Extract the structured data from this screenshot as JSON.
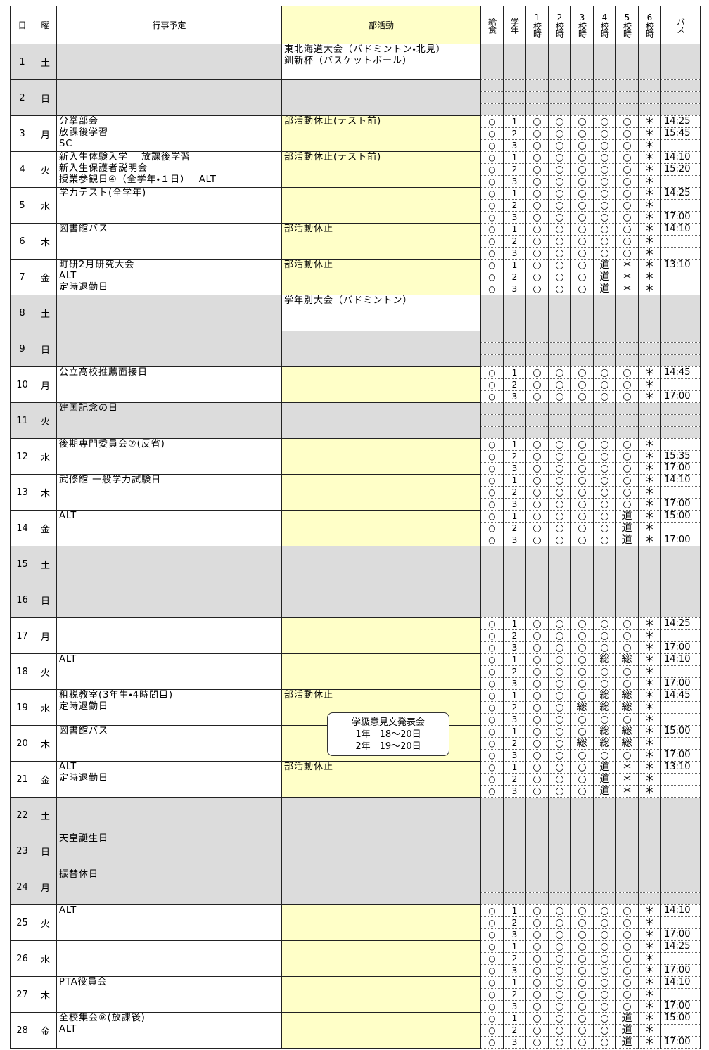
{
  "header": [
    "日",
    "曜",
    "行事予定",
    "部活動",
    "給食",
    "学年",
    "1校時",
    "2校時",
    "3校時",
    "4校時",
    "5校時",
    "6校時",
    "バス"
  ],
  "note": [
    "学級意見文発表会",
    "1年　18～20日",
    "2年　19～20日"
  ],
  "days": [
    {
      "date": 1,
      "dow": "土",
      "holiday": true,
      "events": [],
      "club": [
        "東北海道大会（バドミントン・北見）",
        "釧新杯（バスケットボール）"
      ]
    },
    {
      "date": 2,
      "dow": "日",
      "holiday": true,
      "events": [],
      "club": []
    },
    {
      "date": 3,
      "dow": "月",
      "events": [
        "分掌部会",
        "放課後学習",
        "SC"
      ],
      "club": [
        "部活動休止(テスト前)"
      ],
      "rows": [
        {
          "lunch": "○",
          "grade": 1,
          "periods": [
            "○",
            "○",
            "○",
            "○",
            "○",
            "＊"
          ]
        },
        {
          "lunch": "○",
          "grade": 2,
          "periods": [
            "○",
            "○",
            "○",
            "○",
            "○",
            "＊"
          ]
        },
        {
          "lunch": "○",
          "grade": 3,
          "periods": [
            "○",
            "○",
            "○",
            "○",
            "○",
            "＊"
          ]
        }
      ],
      "bus": [
        "14:25",
        "15:45",
        null
      ]
    },
    {
      "date": 4,
      "dow": "火",
      "events": [
        "新入生体験入学　 放課後学習",
        "新入生保護者説明会",
        "授業参観日④（全学年・１日）　 ALT"
      ],
      "club": [
        "部活動休止(テスト前)"
      ],
      "rows": [
        {
          "lunch": "○",
          "grade": 1,
          "periods": [
            "○",
            "○",
            "○",
            "○",
            "○",
            "＊"
          ]
        },
        {
          "lunch": "○",
          "grade": 2,
          "periods": [
            "○",
            "○",
            "○",
            "○",
            "○",
            "＊"
          ]
        },
        {
          "lunch": "○",
          "grade": 3,
          "periods": [
            "○",
            "○",
            "○",
            "○",
            "○",
            "＊"
          ]
        }
      ],
      "bus": [
        "14:10",
        "15:20",
        null
      ]
    },
    {
      "date": 5,
      "dow": "水",
      "events": [
        "学力テスト(全学年)"
      ],
      "club": [],
      "rows": [
        {
          "lunch": "○",
          "grade": 1,
          "periods": [
            "○",
            "○",
            "○",
            "○",
            "○",
            "＊"
          ]
        },
        {
          "lunch": "○",
          "grade": 2,
          "periods": [
            "○",
            "○",
            "○",
            "○",
            "○",
            "＊"
          ]
        },
        {
          "lunch": "○",
          "grade": 3,
          "periods": [
            "○",
            "○",
            "○",
            "○",
            "○",
            "＊"
          ]
        }
      ],
      "bus": [
        "14:25",
        null,
        "17:00"
      ]
    },
    {
      "date": 6,
      "dow": "木",
      "events": [
        "図書館バス"
      ],
      "club": [
        "部活動休止"
      ],
      "rows": [
        {
          "lunch": "○",
          "grade": 1,
          "periods": [
            "○",
            "○",
            "○",
            "○",
            "○",
            "＊"
          ]
        },
        {
          "lunch": "○",
          "grade": 2,
          "periods": [
            "○",
            "○",
            "○",
            "○",
            "○",
            "＊"
          ]
        },
        {
          "lunch": "○",
          "grade": 3,
          "periods": [
            "○",
            "○",
            "○",
            "○",
            "○",
            "＊"
          ]
        }
      ],
      "bus": [
        "14:10",
        null,
        null
      ]
    },
    {
      "date": 7,
      "dow": "金",
      "events": [
        "町研2月研究大会",
        "ALT",
        "定時退勤日"
      ],
      "club": [
        "部活動休止"
      ],
      "rows": [
        {
          "lunch": "○",
          "grade": 1,
          "periods": [
            "○",
            "○",
            "○",
            "道",
            "＊",
            "＊"
          ]
        },
        {
          "lunch": "○",
          "grade": 2,
          "periods": [
            "○",
            "○",
            "○",
            "道",
            "＊",
            "＊"
          ]
        },
        {
          "lunch": "○",
          "grade": 3,
          "periods": [
            "○",
            "○",
            "○",
            "道",
            "＊",
            "＊"
          ]
        }
      ],
      "bus": [
        "13:10",
        null,
        null
      ]
    },
    {
      "date": 8,
      "dow": "土",
      "holiday": true,
      "events": [],
      "club": [
        "学年別大会（バドミントン）"
      ]
    },
    {
      "date": 9,
      "dow": "日",
      "holiday": true,
      "events": [],
      "club": []
    },
    {
      "date": 10,
      "dow": "月",
      "events": [
        "公立高校推薦面接日"
      ],
      "club": [],
      "rows": [
        {
          "lunch": "○",
          "grade": 1,
          "periods": [
            "○",
            "○",
            "○",
            "○",
            "○",
            "＊"
          ]
        },
        {
          "lunch": "○",
          "grade": 2,
          "periods": [
            "○",
            "○",
            "○",
            "○",
            "○",
            "＊"
          ]
        },
        {
          "lunch": "○",
          "grade": 3,
          "periods": [
            "○",
            "○",
            "○",
            "○",
            "○",
            "＊"
          ]
        }
      ],
      "bus": [
        "14:45",
        null,
        "17:00"
      ]
    },
    {
      "date": 11,
      "dow": "火",
      "holiday": true,
      "events": [
        "建国記念の日"
      ],
      "club": []
    },
    {
      "date": 12,
      "dow": "水",
      "events": [
        "後期専門委員会⑦(反省)"
      ],
      "club": [],
      "rows": [
        {
          "lunch": "○",
          "grade": 1,
          "periods": [
            "○",
            "○",
            "○",
            "○",
            "○",
            "＊"
          ]
        },
        {
          "lunch": "○",
          "grade": 2,
          "periods": [
            "○",
            "○",
            "○",
            "○",
            "○",
            "＊"
          ]
        },
        {
          "lunch": "○",
          "grade": 3,
          "periods": [
            "○",
            "○",
            "○",
            "○",
            "○",
            "＊"
          ]
        }
      ],
      "bus": [
        null,
        "15:35",
        "17:00"
      ]
    },
    {
      "date": 13,
      "dow": "木",
      "events": [
        "武修館 一般学力試験日"
      ],
      "club": [],
      "rows": [
        {
          "lunch": "○",
          "grade": 1,
          "periods": [
            "○",
            "○",
            "○",
            "○",
            "○",
            "＊"
          ]
        },
        {
          "lunch": "○",
          "grade": 2,
          "periods": [
            "○",
            "○",
            "○",
            "○",
            "○",
            "＊"
          ]
        },
        {
          "lunch": "○",
          "grade": 3,
          "periods": [
            "○",
            "○",
            "○",
            "○",
            "○",
            "＊"
          ]
        }
      ],
      "bus": [
        "14:10",
        null,
        "17:00"
      ]
    },
    {
      "date": 14,
      "dow": "金",
      "events": [
        "ALT"
      ],
      "club": [],
      "rows": [
        {
          "lunch": "○",
          "grade": 1,
          "periods": [
            "○",
            "○",
            "○",
            "○",
            "道",
            "＊"
          ]
        },
        {
          "lunch": "○",
          "grade": 2,
          "periods": [
            "○",
            "○",
            "○",
            "○",
            "道",
            "＊"
          ]
        },
        {
          "lunch": "○",
          "grade": 3,
          "periods": [
            "○",
            "○",
            "○",
            "○",
            "道",
            "＊"
          ]
        }
      ],
      "bus": [
        "15:00",
        null,
        "17:00"
      ]
    },
    {
      "date": 15,
      "dow": "土",
      "holiday": true,
      "events": [],
      "club": []
    },
    {
      "date": 16,
      "dow": "日",
      "holiday": true,
      "events": [],
      "club": []
    },
    {
      "date": 17,
      "dow": "月",
      "events": [],
      "club": [],
      "rows": [
        {
          "lunch": "○",
          "grade": 1,
          "periods": [
            "○",
            "○",
            "○",
            "○",
            "○",
            "＊"
          ]
        },
        {
          "lunch": "○",
          "grade": 2,
          "periods": [
            "○",
            "○",
            "○",
            "○",
            "○",
            "＊"
          ]
        },
        {
          "lunch": "○",
          "grade": 3,
          "periods": [
            "○",
            "○",
            "○",
            "○",
            "○",
            "＊"
          ]
        }
      ],
      "bus": [
        "14:25",
        null,
        "17:00"
      ]
    },
    {
      "date": 18,
      "dow": "火",
      "events": [
        "ALT"
      ],
      "club": [],
      "rows": [
        {
          "lunch": "○",
          "grade": 1,
          "periods": [
            "○",
            "○",
            "○",
            "総",
            "総",
            "＊"
          ]
        },
        {
          "lunch": "○",
          "grade": 2,
          "periods": [
            "○",
            "○",
            "○",
            "○",
            "○",
            "＊"
          ]
        },
        {
          "lunch": "○",
          "grade": 3,
          "periods": [
            "○",
            "○",
            "○",
            "○",
            "○",
            "＊"
          ]
        }
      ],
      "bus": [
        "14:10",
        null,
        "17:00"
      ]
    },
    {
      "date": 19,
      "dow": "水",
      "events": [
        "租税教室(3年生・4時間目)",
        "定時退勤日"
      ],
      "club": [
        "部活動休止"
      ],
      "rows": [
        {
          "lunch": "○",
          "grade": 1,
          "periods": [
            "○",
            "○",
            "○",
            "総",
            "総",
            "＊"
          ]
        },
        {
          "lunch": "○",
          "grade": 2,
          "periods": [
            "○",
            "○",
            "総",
            "総",
            "総",
            "＊"
          ]
        },
        {
          "lunch": "○",
          "grade": 3,
          "periods": [
            "○",
            "○",
            "○",
            "○",
            "○",
            "＊"
          ]
        }
      ],
      "bus": [
        "14:45",
        null,
        null
      ]
    },
    {
      "date": 20,
      "dow": "木",
      "events": [
        "図書館バス"
      ],
      "club": [],
      "rows": [
        {
          "lunch": "○",
          "grade": 1,
          "periods": [
            "○",
            "○",
            "○",
            "総",
            "総",
            "＊"
          ]
        },
        {
          "lunch": "○",
          "grade": 2,
          "periods": [
            "○",
            "○",
            "総",
            "総",
            "総",
            "＊"
          ]
        },
        {
          "lunch": "○",
          "grade": 3,
          "periods": [
            "○",
            "○",
            "○",
            "○",
            "○",
            "＊"
          ]
        }
      ],
      "bus": [
        "15:00",
        null,
        "17:00"
      ]
    },
    {
      "date": 21,
      "dow": "金",
      "events": [
        "ALT",
        "定時退勤日"
      ],
      "club": [
        "部活動休止"
      ],
      "rows": [
        {
          "lunch": "○",
          "grade": 1,
          "periods": [
            "○",
            "○",
            "○",
            "道",
            "＊",
            "＊"
          ]
        },
        {
          "lunch": "○",
          "grade": 2,
          "periods": [
            "○",
            "○",
            "○",
            "道",
            "＊",
            "＊"
          ]
        },
        {
          "lunch": "○",
          "grade": 3,
          "periods": [
            "○",
            "○",
            "○",
            "道",
            "＊",
            "＊"
          ]
        }
      ],
      "bus": [
        "13:10",
        null,
        null
      ]
    },
    {
      "date": 22,
      "dow": "土",
      "holiday": true,
      "events": [],
      "club": []
    },
    {
      "date": 23,
      "dow": "日",
      "holiday": true,
      "events": [
        "天皇誕生日"
      ],
      "club": []
    },
    {
      "date": 24,
      "dow": "月",
      "holiday": true,
      "events": [
        "振替休日"
      ],
      "club": []
    },
    {
      "date": 25,
      "dow": "火",
      "events": [
        "ALT"
      ],
      "club": [],
      "rows": [
        {
          "lunch": "○",
          "grade": 1,
          "periods": [
            "○",
            "○",
            "○",
            "○",
            "○",
            "＊"
          ]
        },
        {
          "lunch": "○",
          "grade": 2,
          "periods": [
            "○",
            "○",
            "○",
            "○",
            "○",
            "＊"
          ]
        },
        {
          "lunch": "○",
          "grade": 3,
          "periods": [
            "○",
            "○",
            "○",
            "○",
            "○",
            "＊"
          ]
        }
      ],
      "bus": [
        "14:10",
        null,
        "17:00"
      ]
    },
    {
      "date": 26,
      "dow": "水",
      "events": [],
      "club": [],
      "rows": [
        {
          "lunch": "○",
          "grade": 1,
          "periods": [
            "○",
            "○",
            "○",
            "○",
            "○",
            "＊"
          ]
        },
        {
          "lunch": "○",
          "grade": 2,
          "periods": [
            "○",
            "○",
            "○",
            "○",
            "○",
            "＊"
          ]
        },
        {
          "lunch": "○",
          "grade": 3,
          "periods": [
            "○",
            "○",
            "○",
            "○",
            "○",
            "＊"
          ]
        }
      ],
      "bus": [
        "14:25",
        null,
        "17:00"
      ]
    },
    {
      "date": 27,
      "dow": "木",
      "events": [
        "PTA役員会"
      ],
      "club": [],
      "rows": [
        {
          "lunch": "○",
          "grade": 1,
          "periods": [
            "○",
            "○",
            "○",
            "○",
            "○",
            "＊"
          ]
        },
        {
          "lunch": "○",
          "grade": 2,
          "periods": [
            "○",
            "○",
            "○",
            "○",
            "○",
            "＊"
          ]
        },
        {
          "lunch": "○",
          "grade": 3,
          "periods": [
            "○",
            "○",
            "○",
            "○",
            "○",
            "＊"
          ]
        }
      ],
      "bus": [
        "14:10",
        null,
        "17:00"
      ]
    },
    {
      "date": 28,
      "dow": "金",
      "events": [
        "全校集会⑨(放課後)",
        "ALT"
      ],
      "club": [],
      "rows": [
        {
          "lunch": "○",
          "grade": 1,
          "periods": [
            "○",
            "○",
            "○",
            "○",
            "道",
            "＊"
          ]
        },
        {
          "lunch": "○",
          "grade": 2,
          "periods": [
            "○",
            "○",
            "○",
            "○",
            "道",
            "＊"
          ]
        },
        {
          "lunch": "○",
          "grade": 3,
          "periods": [
            "○",
            "○",
            "○",
            "○",
            "道",
            "＊"
          ]
        }
      ],
      "bus": [
        "15:00",
        null,
        "17:00"
      ]
    }
  ]
}
